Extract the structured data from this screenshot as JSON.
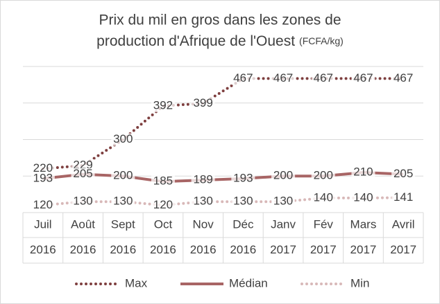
{
  "chart_data": {
    "type": "line",
    "title": "Prix du mil en gros dans les zones de",
    "title_line2": "production d'Afrique de l'Ouest",
    "unit": "(FCFA/kg)",
    "categories": [
      "Juil",
      "Août",
      "Sept",
      "Oct",
      "Nov",
      "Déc",
      "Janv",
      "Fév",
      "Mars",
      "Avril"
    ],
    "years": [
      "2016",
      "2016",
      "2016",
      "2016",
      "2016",
      "2016",
      "2017",
      "2017",
      "2017",
      "2017"
    ],
    "series": [
      {
        "name": "Max",
        "color": "#7e3f3f",
        "style": "dotted",
        "values": [
          220,
          229,
          300,
          392,
          399,
          467,
          467,
          467,
          467,
          467
        ]
      },
      {
        "name": "Médian",
        "color": "#a86565",
        "style": "solid",
        "values": [
          193,
          205,
          200,
          185,
          189,
          193,
          200,
          200,
          210,
          205
        ]
      },
      {
        "name": "Min",
        "color": "#d8b8b8",
        "style": "dotted",
        "values": [
          120,
          130,
          130,
          120,
          130,
          130,
          130,
          140,
          140,
          141
        ]
      }
    ],
    "ylim": [
      100,
      500
    ],
    "yticks": [
      100,
      200,
      300,
      400,
      500
    ],
    "grid": true,
    "legend": "bottom"
  }
}
